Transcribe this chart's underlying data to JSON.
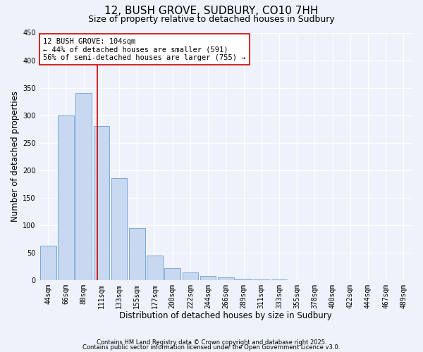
{
  "title": "12, BUSH GROVE, SUDBURY, CO10 7HH",
  "subtitle": "Size of property relative to detached houses in Sudbury",
  "xlabel": "Distribution of detached houses by size in Sudbury",
  "ylabel": "Number of detached properties",
  "bin_labels": [
    "44sqm",
    "66sqm",
    "88sqm",
    "111sqm",
    "133sqm",
    "155sqm",
    "177sqm",
    "200sqm",
    "222sqm",
    "244sqm",
    "266sqm",
    "289sqm",
    "311sqm",
    "333sqm",
    "355sqm",
    "378sqm",
    "400sqm",
    "422sqm",
    "444sqm",
    "467sqm",
    "489sqm"
  ],
  "bar_heights": [
    63,
    300,
    340,
    280,
    185,
    95,
    45,
    22,
    14,
    7,
    5,
    2,
    1,
    1,
    0,
    0,
    0,
    0,
    0,
    0,
    0
  ],
  "bar_color": "#c8d8f0",
  "bar_edgecolor": "#7aa8d8",
  "vline_x": 2.75,
  "vline_color": "#cc0000",
  "annotation_title": "12 BUSH GROVE: 104sqm",
  "annotation_line1": "← 44% of detached houses are smaller (591)",
  "annotation_line2": "56% of semi-detached houses are larger (755) →",
  "annotation_box_color": "#ffffff",
  "annotation_box_edgecolor": "#cc0000",
  "ylim": [
    0,
    450
  ],
  "yticks": [
    0,
    50,
    100,
    150,
    200,
    250,
    300,
    350,
    400,
    450
  ],
  "footnote1": "Contains HM Land Registry data © Crown copyright and database right 2025.",
  "footnote2": "Contains public sector information licensed under the Open Government Licence v3.0.",
  "bg_color": "#eef2fb",
  "grid_color": "#ffffff",
  "title_fontsize": 11,
  "subtitle_fontsize": 9,
  "xlabel_fontsize": 8.5,
  "ylabel_fontsize": 8.5,
  "tick_fontsize": 7,
  "annot_fontsize": 7.5,
  "footnote_fontsize": 6
}
